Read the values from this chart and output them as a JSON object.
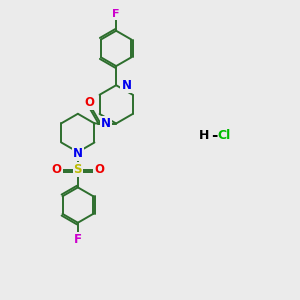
{
  "background_color": "#ebebeb",
  "bond_color": "#2d6e2d",
  "N_color": "#0000ee",
  "O_color": "#ee0000",
  "S_color": "#bbbb00",
  "F_color": "#cc00cc",
  "Cl_color": "#00bb00",
  "bond_width": 1.4,
  "figsize": [
    3.0,
    3.0
  ],
  "dpi": 100,
  "xlim": [
    0,
    10
  ],
  "ylim": [
    0,
    10
  ]
}
